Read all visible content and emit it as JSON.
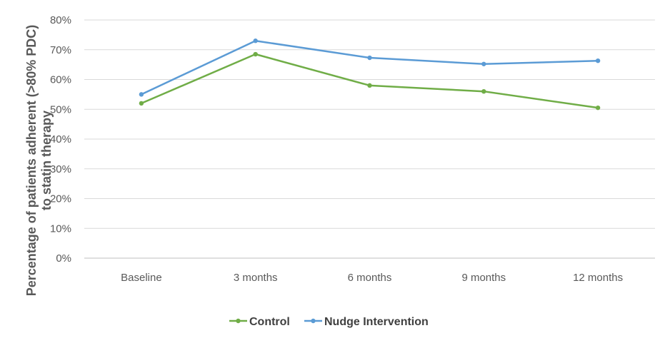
{
  "chart_data": {
    "type": "line",
    "title": "",
    "xlabel": "",
    "ylabel_lines": [
      "Percentage of patients adherent (>80% PDC)",
      "to statin therapy"
    ],
    "categories": [
      "Baseline",
      "3 months",
      "6 months",
      "9 months",
      "12 months"
    ],
    "y_ticks": [
      "0%",
      "10%",
      "20%",
      "30%",
      "40%",
      "50%",
      "60%",
      "70%",
      "80%"
    ],
    "ylim": [
      0,
      80
    ],
    "grid": "horizontal",
    "legend_position": "bottom",
    "series": [
      {
        "name": "Control",
        "color": "#70AD47",
        "values": [
          52,
          68.5,
          58,
          56,
          50.5
        ]
      },
      {
        "name": "Nudge Intervention",
        "color": "#5B9BD5",
        "values": [
          55,
          73,
          67.3,
          65.2,
          66.3
        ]
      }
    ]
  }
}
